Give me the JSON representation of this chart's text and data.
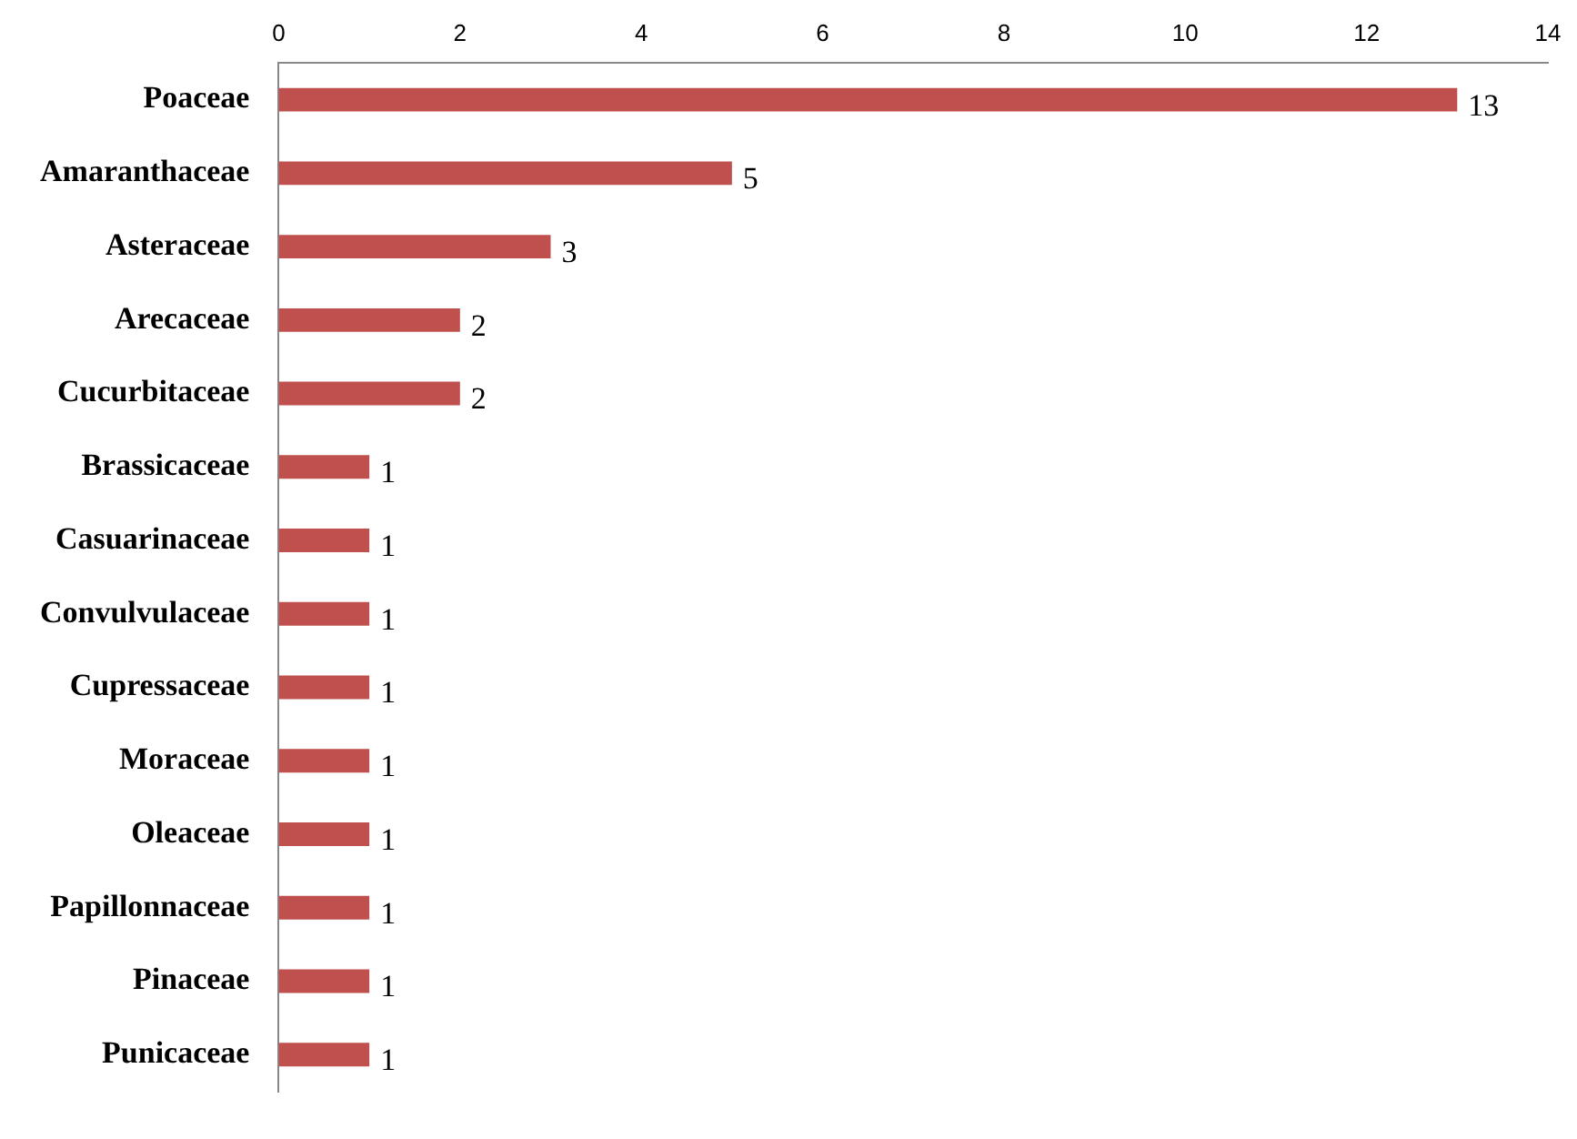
{
  "chart_data": {
    "type": "bar",
    "orientation": "horizontal",
    "categories": [
      "Poaceae",
      "Amaranthaceae",
      "Asteraceae",
      "Arecaceae",
      "Cucurbitaceae",
      "Brassicaceae",
      "Casuarinaceae",
      "Convulvulaceae",
      "Cupressaceae",
      "Moraceae",
      "Oleaceae",
      "Papillonnaceae",
      "Pinaceae",
      "Punicaceae"
    ],
    "values": [
      13,
      5,
      3,
      2,
      2,
      1,
      1,
      1,
      1,
      1,
      1,
      1,
      1,
      1
    ],
    "color": "#c0504d",
    "xlim": [
      0,
      14
    ],
    "xticks": [
      0,
      2,
      4,
      6,
      8,
      10,
      12,
      14
    ],
    "grid": false,
    "legend": false,
    "data_labels": true
  }
}
